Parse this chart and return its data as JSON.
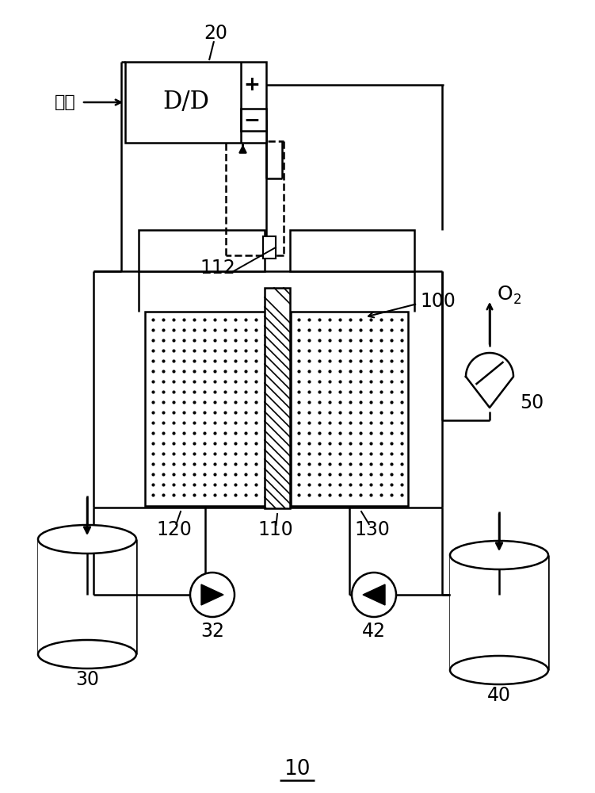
{
  "bg_color": "#ffffff",
  "line_color": "#000000",
  "lw": 1.8,
  "labels": {
    "power_source": "电源",
    "dd": "D/D",
    "plus": "+",
    "minus": "−",
    "num_20": "20",
    "num_50": "50",
    "num_30": "30",
    "num_32": "32",
    "num_40": "40",
    "num_42": "42",
    "num_100": "100",
    "num_110": "110",
    "num_112": "112",
    "num_120": "120",
    "num_130": "130",
    "num_10": "10",
    "o2_main": "O",
    "o2_sub": "2"
  }
}
